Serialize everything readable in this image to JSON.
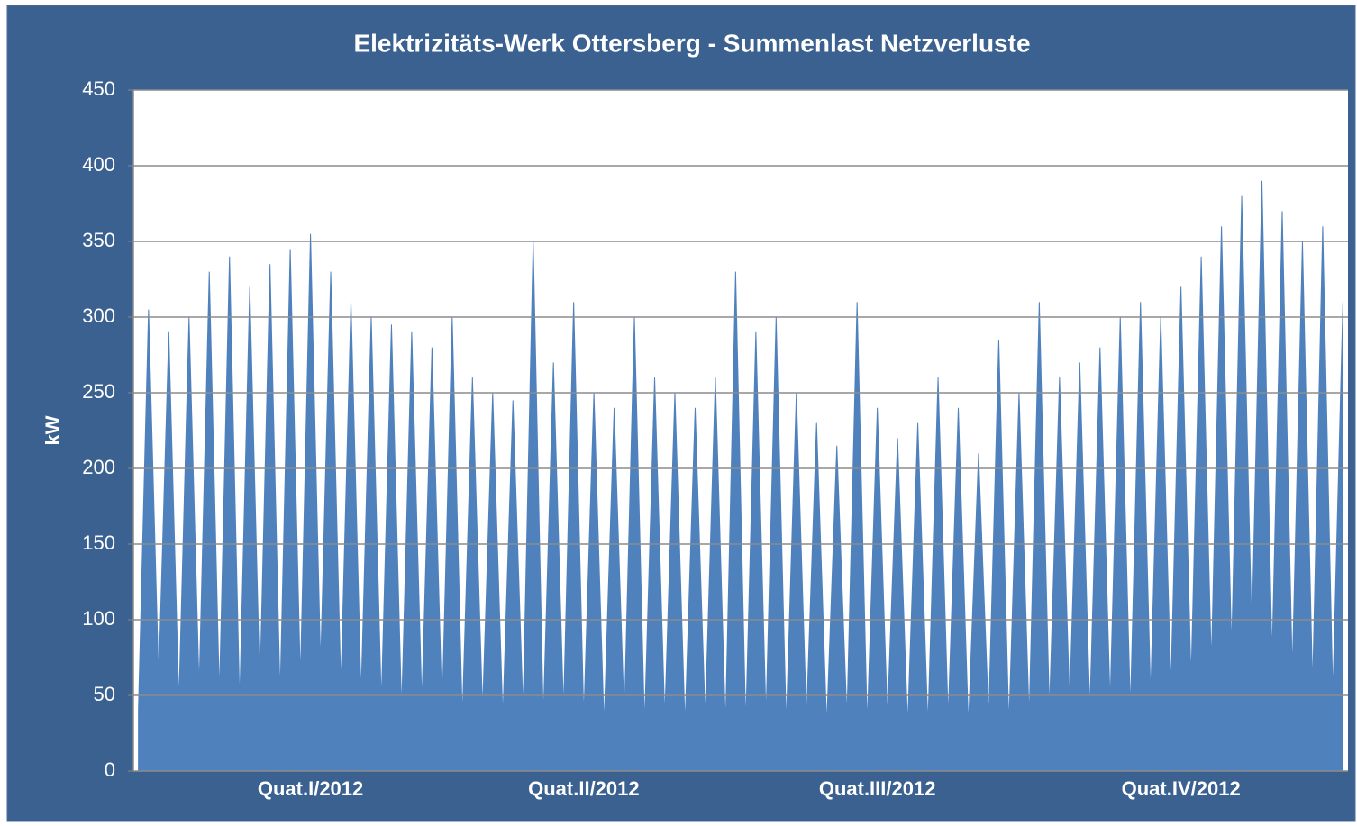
{
  "chart_data": {
    "type": "area",
    "title": "Elektrizitäts-Werk Ottersberg - Summenlast Netzverluste",
    "y_label": "kW",
    "categories": [
      null,
      null,
      null,
      null,
      null,
      null,
      null,
      null,
      null,
      null,
      null,
      null,
      null,
      null,
      null,
      null,
      null,
      "Quat.I/2012",
      null,
      null,
      null,
      null,
      null,
      null,
      null,
      null,
      null,
      null,
      null,
      null,
      null,
      null,
      null,
      null,
      null,
      null,
      null,
      null,
      null,
      null,
      null,
      null,
      null,
      null,
      "Quat.II/2012",
      null,
      null,
      null,
      null,
      null,
      null,
      null,
      null,
      null,
      null,
      null,
      null,
      null,
      null,
      null,
      null,
      null,
      null,
      null,
      null,
      null,
      null,
      null,
      null,
      null,
      null,
      null,
      null,
      "Quat.III/2012",
      null,
      null,
      null,
      null,
      null,
      null,
      null,
      null,
      null,
      null,
      null,
      null,
      null,
      null,
      null,
      null,
      null,
      null,
      null,
      null,
      null,
      null,
      null,
      null,
      null,
      null,
      null,
      null,
      null,
      "Quat.IV/2012",
      null,
      null,
      null,
      null,
      null,
      null,
      null,
      null,
      null,
      null,
      null,
      null,
      null,
      null,
      null,
      null
    ],
    "values": [
      40,
      305,
      60,
      290,
      45,
      300,
      55,
      330,
      50,
      340,
      45,
      320,
      55,
      335,
      50,
      345,
      60,
      355,
      70,
      330,
      55,
      310,
      50,
      300,
      45,
      295,
      40,
      290,
      45,
      280,
      40,
      300,
      35,
      260,
      40,
      250,
      35,
      245,
      40,
      350,
      35,
      270,
      40,
      310,
      35,
      250,
      30,
      240,
      35,
      300,
      30,
      260,
      35,
      250,
      30,
      240,
      35,
      260,
      30,
      330,
      30,
      290,
      35,
      300,
      30,
      250,
      35,
      230,
      30,
      215,
      35,
      310,
      30,
      240,
      35,
      220,
      30,
      230,
      30,
      260,
      35,
      240,
      30,
      210,
      35,
      285,
      30,
      250,
      35,
      310,
      40,
      260,
      45,
      270,
      40,
      280,
      45,
      300,
      40,
      310,
      50,
      300,
      55,
      320,
      60,
      340,
      70,
      360,
      80,
      380,
      90,
      390,
      75,
      370,
      65,
      350,
      55,
      360,
      50,
      310
    ],
    "color": "#4f81bd",
    "ylim": [
      0,
      450
    ],
    "yticks": [
      0,
      50,
      100,
      150,
      200,
      250,
      300,
      350,
      400,
      450
    ],
    "grid": true
  }
}
